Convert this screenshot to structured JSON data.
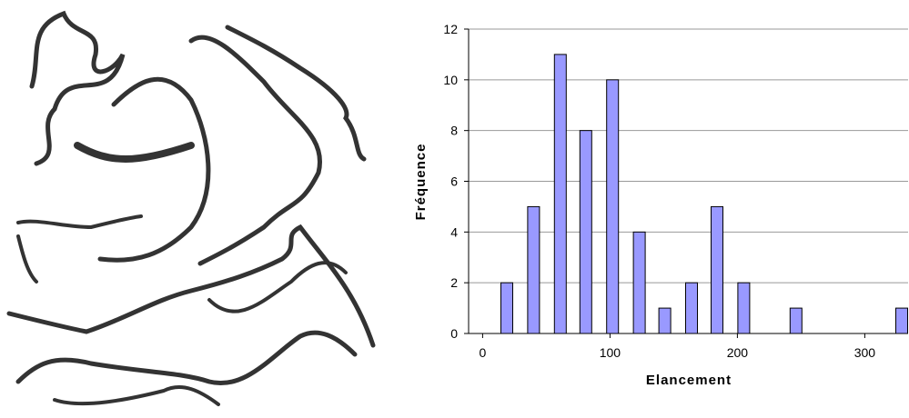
{
  "chart_data": {
    "type": "bar",
    "x_label": "Elancement",
    "y_label": "Fréquence",
    "x": [
      19,
      40,
      61,
      81,
      102,
      123,
      143,
      164,
      184,
      205,
      246,
      329
    ],
    "values": [
      2,
      5,
      11,
      8,
      10,
      4,
      1,
      2,
      5,
      2,
      1,
      1
    ],
    "color": "#9999ff",
    "xlim": [
      -11,
      334
    ],
    "xticks": [
      0,
      100,
      200,
      300
    ],
    "ylim": [
      0,
      12
    ],
    "yticks": [
      0,
      2,
      4,
      6,
      8,
      10,
      12
    ],
    "grid": true
  }
}
